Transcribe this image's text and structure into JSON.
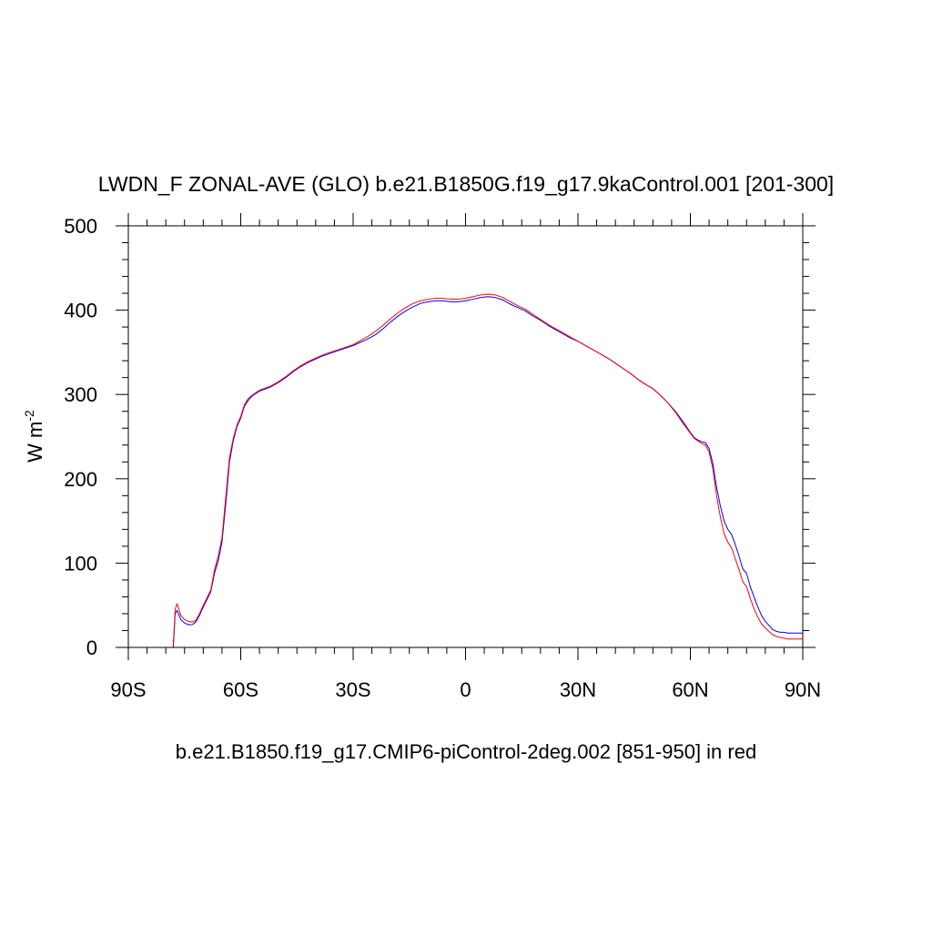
{
  "chart_data": {
    "type": "line",
    "title": "LWDN_F ZONAL-AVE (GLO) b.e21.B1850G.f19_g17.9kaControl.001 [201-300]",
    "ylabel_base": "W m",
    "ylabel_exp": "-2",
    "caption": "b.e21.B1850.f19_g17.CMIP6-piControl-2deg.002 [851-950] in red",
    "xlim": [
      -90,
      90
    ],
    "ylim": [
      0,
      500
    ],
    "xticks": [
      {
        "value": -90,
        "label": "90S"
      },
      {
        "value": -60,
        "label": "60S"
      },
      {
        "value": -30,
        "label": "30S"
      },
      {
        "value": 0,
        "label": "0"
      },
      {
        "value": 30,
        "label": "30N"
      },
      {
        "value": 60,
        "label": "60N"
      },
      {
        "value": 90,
        "label": "90N"
      }
    ],
    "yticks": [
      {
        "value": 0,
        "label": "0"
      },
      {
        "value": 100,
        "label": "100"
      },
      {
        "value": 200,
        "label": "200"
      },
      {
        "value": 300,
        "label": "300"
      },
      {
        "value": 400,
        "label": "400"
      },
      {
        "value": 500,
        "label": "500"
      }
    ],
    "grid": false,
    "series": [
      {
        "color": "#0000ff",
        "x": [
          -78,
          -77.5,
          -77,
          -76,
          -75,
          -74,
          -73,
          -72,
          -71,
          -70,
          -69,
          -68,
          -67,
          -66,
          -65,
          -64,
          -63,
          -62,
          -61,
          -60,
          -59,
          -58,
          -57,
          -56,
          -55,
          -52,
          -50,
          -48,
          -46,
          -44,
          -42,
          -40,
          -38,
          -36,
          -34,
          -32,
          -30,
          -28,
          -26,
          -24,
          -22,
          -20,
          -18,
          -16,
          -14,
          -12,
          -10,
          -8,
          -6,
          -4,
          -2,
          0,
          2,
          4,
          6,
          8,
          10,
          12,
          14,
          16,
          18,
          20,
          22,
          24,
          26,
          28,
          30,
          32,
          34,
          36,
          38,
          40,
          42,
          44,
          46,
          48,
          50,
          52,
          54,
          56,
          58,
          60,
          61,
          62,
          63,
          64,
          65,
          66,
          67,
          68,
          69,
          70,
          71,
          72,
          73,
          74,
          75,
          76,
          77,
          78,
          79,
          80,
          81,
          82,
          83,
          84,
          85,
          86,
          87,
          88,
          89,
          90
        ],
        "y": [
          0,
          40,
          44,
          33,
          29,
          27,
          27,
          30,
          38,
          48,
          57,
          66,
          88,
          103,
          125,
          170,
          220,
          245,
          262,
          272,
          286,
          293,
          298,
          301,
          304,
          309,
          314,
          320,
          327,
          333,
          338,
          342,
          346,
          349,
          352,
          355,
          358,
          362,
          366,
          371,
          378,
          386,
          393,
          399,
          404,
          408,
          410,
          411,
          411,
          410,
          410,
          411,
          413,
          415,
          416,
          415,
          412,
          407,
          403,
          399,
          393,
          388,
          382,
          377,
          372,
          367,
          363,
          358,
          353,
          348,
          343,
          337,
          331,
          325,
          318,
          312,
          307,
          299,
          290,
          280,
          268,
          255,
          249,
          246,
          244,
          243,
          236,
          218,
          190,
          168,
          150,
          140,
          134,
          122,
          108,
          93,
          88,
          72,
          60,
          48,
          38,
          31,
          26,
          21,
          19,
          18,
          18,
          17,
          17,
          17,
          17,
          17
        ]
      },
      {
        "color": "#ff0000",
        "x": [
          -78,
          -77.5,
          -77,
          -76,
          -75,
          -74,
          -73,
          -72,
          -71,
          -70,
          -69,
          -68,
          -67,
          -66,
          -65,
          -64,
          -63,
          -62,
          -61,
          -60,
          -59,
          -58,
          -57,
          -56,
          -55,
          -52,
          -50,
          -48,
          -46,
          -44,
          -42,
          -40,
          -38,
          -36,
          -34,
          -32,
          -30,
          -28,
          -26,
          -24,
          -22,
          -20,
          -18,
          -16,
          -14,
          -12,
          -10,
          -8,
          -6,
          -4,
          -2,
          0,
          2,
          4,
          6,
          8,
          10,
          12,
          14,
          16,
          18,
          20,
          22,
          24,
          26,
          28,
          30,
          32,
          34,
          36,
          38,
          40,
          42,
          44,
          46,
          48,
          50,
          52,
          54,
          56,
          58,
          60,
          61,
          62,
          63,
          64,
          65,
          66,
          67,
          68,
          69,
          70,
          71,
          72,
          73,
          74,
          75,
          76,
          77,
          78,
          79,
          80,
          81,
          82,
          83,
          84,
          85,
          86,
          87,
          88,
          89,
          90
        ],
        "y": [
          3,
          45,
          52,
          38,
          33,
          31,
          30,
          32,
          40,
          50,
          59,
          68,
          92,
          108,
          130,
          178,
          225,
          248,
          264,
          274,
          288,
          295,
          299,
          302,
          305,
          310,
          315,
          321,
          328,
          334,
          339,
          343,
          347,
          350,
          353,
          356,
          359,
          364,
          369,
          375,
          382,
          390,
          397,
          403,
          408,
          411,
          413,
          414,
          414,
          413,
          413,
          414,
          416,
          418,
          419,
          418,
          415,
          410,
          405,
          401,
          395,
          389,
          383,
          378,
          373,
          368,
          363,
          358,
          353,
          348,
          343,
          337,
          331,
          325,
          318,
          312,
          307,
          299,
          290,
          279,
          266,
          254,
          248,
          245,
          242,
          240,
          232,
          212,
          180,
          155,
          135,
          125,
          118,
          105,
          92,
          78,
          72,
          58,
          46,
          36,
          28,
          23,
          19,
          15,
          13,
          12,
          11,
          10,
          10,
          10,
          10,
          10
        ]
      }
    ]
  }
}
